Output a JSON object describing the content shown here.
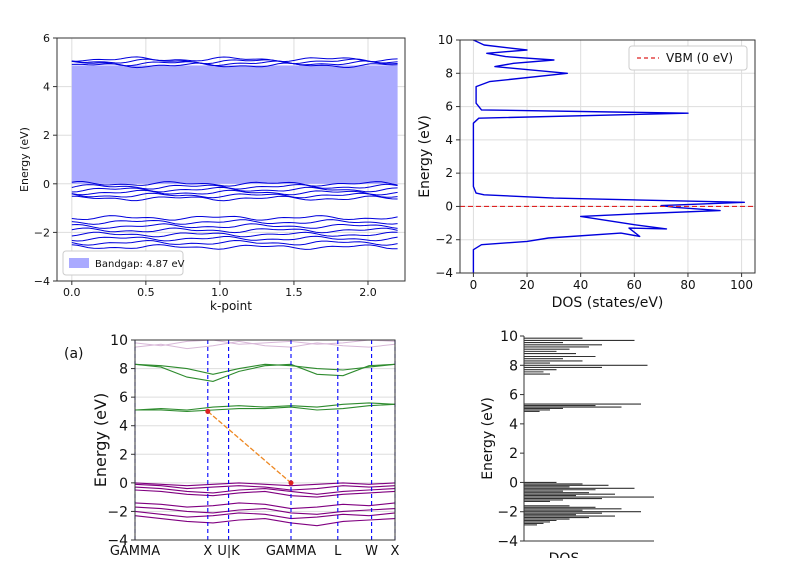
{
  "chart_data": [
    {
      "id": "band-structure-top",
      "type": "line",
      "title": "",
      "xlabel": "k-point",
      "ylabel": "Energy (eV)",
      "xlim": [
        -0.1,
        2.25
      ],
      "ylim": [
        -4,
        6
      ],
      "xticks": [
        "0.0",
        "0.5",
        "1.0",
        "1.5",
        "2.0"
      ],
      "xtick_values": [
        0.0,
        0.5,
        1.0,
        1.5,
        2.0
      ],
      "yticks": [
        "6",
        "4",
        "2",
        "0",
        "−2",
        "−4"
      ],
      "ytick_values": [
        6,
        4,
        2,
        0,
        -2,
        -4
      ],
      "gap_region": {
        "from": 0.0,
        "to": 4.87,
        "xrange": [
          0.0,
          2.2
        ]
      },
      "legend": {
        "label": "Bandgap: 4.87 eV",
        "position": "bottom-left",
        "color": "#aaaaff"
      },
      "line_color": "#0000dd",
      "band_groups": [
        {
          "center": 5.0,
          "width": 0.25,
          "count": 4
        },
        {
          "center": -0.3,
          "width": 0.6,
          "count": 6
        },
        {
          "center": -2.0,
          "width": 1.2,
          "count": 8
        }
      ],
      "grid": true
    },
    {
      "id": "dos-top",
      "type": "line",
      "title": "",
      "xlabel": "DOS (states/eV)",
      "ylabel": "Energy (eV)",
      "xlim": [
        -5,
        105
      ],
      "ylim": [
        -4,
        10
      ],
      "xticks": [
        "0",
        "20",
        "40",
        "60",
        "80",
        "100"
      ],
      "xtick_values": [
        0,
        20,
        40,
        60,
        80,
        100
      ],
      "yticks": [
        "10",
        "8",
        "6",
        "4",
        "2",
        "0",
        "−2",
        "−4"
      ],
      "ytick_values": [
        10,
        8,
        6,
        4,
        2,
        0,
        -2,
        -4
      ],
      "line_color": "#0000dd",
      "reference_line": {
        "y": 0,
        "label": "VBM (0 eV)",
        "color": "#dd2222"
      },
      "legend": {
        "position": "top-right"
      },
      "points": [
        [
          0,
          -4.0
        ],
        [
          0,
          -2.6
        ],
        [
          3,
          -2.3
        ],
        [
          20,
          -2.1
        ],
        [
          28,
          -1.9
        ],
        [
          55,
          -1.6
        ],
        [
          62,
          -1.8
        ],
        [
          58,
          -1.3
        ],
        [
          72,
          -1.35
        ],
        [
          60,
          -1.1
        ],
        [
          40,
          -0.6
        ],
        [
          60,
          -0.45
        ],
        [
          92,
          -0.25
        ],
        [
          75,
          -0.05
        ],
        [
          70,
          0.05
        ],
        [
          101,
          0.25
        ],
        [
          30,
          0.5
        ],
        [
          4,
          0.7
        ],
        [
          1,
          0.8
        ],
        [
          0,
          1.2
        ],
        [
          0,
          5.0
        ],
        [
          2,
          5.3
        ],
        [
          80,
          5.6
        ],
        [
          3,
          5.8
        ],
        [
          1,
          6.2
        ],
        [
          1,
          7.2
        ],
        [
          6,
          7.5
        ],
        [
          35,
          8.0
        ],
        [
          8,
          8.4
        ],
        [
          15,
          8.6
        ],
        [
          30,
          8.8
        ],
        [
          12,
          9.0
        ],
        [
          5,
          9.2
        ],
        [
          20,
          9.4
        ],
        [
          4,
          9.7
        ],
        [
          0,
          10.0
        ]
      ],
      "grid": true
    },
    {
      "id": "band-structure-bottom",
      "type": "line",
      "title": "",
      "panel_label": "(a)",
      "xlabel": "",
      "ylabel": "Energy (eV)",
      "ylim": [
        -4,
        10
      ],
      "yticks": [
        "10",
        "8",
        "6",
        "4",
        "2",
        "0",
        "−2",
        "−4"
      ],
      "ytick_values": [
        10,
        8,
        6,
        4,
        2,
        0,
        -2,
        -4
      ],
      "high_symmetry_points": [
        {
          "label": "GAMMA",
          "pos": 0.0
        },
        {
          "label": "X",
          "pos": 0.28
        },
        {
          "label": "U|K",
          "pos": 0.36
        },
        {
          "label": "GAMMA",
          "pos": 0.6
        },
        {
          "label": "L",
          "pos": 0.78
        },
        {
          "label": "W",
          "pos": 0.91
        },
        {
          "label": "X",
          "pos": 1.0
        }
      ],
      "vline_color": "#0000ff",
      "conduction_color": "#2e8b2e",
      "valence_color": "#800080",
      "faint_color": "#d8b8d8",
      "conduction_bands": [
        [
          5.1,
          5.1,
          5.0,
          5.1,
          5.2,
          5.2,
          5.3,
          5.1,
          5.2,
          5.4,
          5.5
        ],
        [
          5.1,
          5.2,
          5.1,
          5.3,
          5.4,
          5.3,
          5.4,
          5.3,
          5.5,
          5.6,
          5.5
        ],
        [
          8.3,
          8.1,
          7.4,
          7.1,
          7.8,
          8.2,
          8.3,
          7.6,
          7.5,
          8.2,
          8.3
        ],
        [
          8.3,
          8.2,
          8.0,
          7.6,
          8.0,
          8.3,
          8.2,
          8.0,
          7.9,
          8.1,
          8.3
        ]
      ],
      "valence_bands": [
        [
          0.0,
          -0.1,
          -0.2,
          -0.1,
          0.0,
          -0.1,
          -0.2,
          -0.1,
          0.0,
          -0.1,
          0.0
        ],
        [
          -0.1,
          -0.2,
          -0.4,
          -0.3,
          -0.2,
          -0.3,
          -0.5,
          -0.4,
          -0.2,
          -0.3,
          -0.2
        ],
        [
          -0.3,
          -0.4,
          -0.6,
          -0.7,
          -0.5,
          -0.4,
          -0.6,
          -0.8,
          -0.6,
          -0.5,
          -0.4
        ],
        [
          -0.5,
          -0.6,
          -0.8,
          -0.9,
          -0.7,
          -0.6,
          -0.9,
          -1.0,
          -0.8,
          -0.7,
          -0.6
        ],
        [
          -1.4,
          -1.5,
          -1.7,
          -1.6,
          -1.4,
          -1.5,
          -1.8,
          -1.7,
          -1.5,
          -1.6,
          -1.4
        ],
        [
          -1.7,
          -1.8,
          -2.0,
          -2.1,
          -1.9,
          -1.8,
          -2.1,
          -2.2,
          -2.0,
          -1.9,
          -1.8
        ],
        [
          -2.0,
          -2.2,
          -2.4,
          -2.3,
          -2.1,
          -2.2,
          -2.5,
          -2.4,
          -2.2,
          -2.3,
          -2.1
        ],
        [
          -2.3,
          -2.5,
          -2.7,
          -2.8,
          -2.6,
          -2.5,
          -2.8,
          -3.0,
          -2.7,
          -2.6,
          -2.5
        ]
      ],
      "faint_bands": [
        [
          9.8,
          9.6,
          9.9,
          10.0,
          9.7,
          9.8,
          9.9,
          9.7,
          9.8,
          10.0,
          9.9
        ],
        [
          9.5,
          9.7,
          9.4,
          9.6,
          9.9,
          9.6,
          9.5,
          9.8,
          9.6,
          9.5,
          9.7
        ]
      ],
      "gap_transition": {
        "from": {
          "pos": 0.28,
          "energy": 5.0
        },
        "to": {
          "pos": 0.6,
          "energy": 0.0
        },
        "color": "#ee8822",
        "marker_color": "#dd2222"
      },
      "grid": true
    },
    {
      "id": "dos-bottom",
      "type": "bar",
      "title": "",
      "xlabel": "DOS",
      "ylabel": "Energy (eV)",
      "ylim": [
        -4,
        10
      ],
      "yticks": [
        "10",
        "8",
        "6",
        "4",
        "2",
        "0",
        "−2",
        "−4"
      ],
      "ytick_values": [
        10,
        8,
        6,
        4,
        2,
        0,
        -2,
        -4
      ],
      "bar_color": "#333333",
      "max_dos": 1.0,
      "bars": [
        [
          9.85,
          0.45
        ],
        [
          9.7,
          0.85
        ],
        [
          9.55,
          0.3
        ],
        [
          9.4,
          0.6
        ],
        [
          9.25,
          0.5
        ],
        [
          9.1,
          0.35
        ],
        [
          8.95,
          0.25
        ],
        [
          8.8,
          0.4
        ],
        [
          8.6,
          0.55
        ],
        [
          8.45,
          0.3
        ],
        [
          8.3,
          0.45
        ],
        [
          8.15,
          0.2
        ],
        [
          8.0,
          0.95
        ],
        [
          7.85,
          0.6
        ],
        [
          7.7,
          0.25
        ],
        [
          7.55,
          0.15
        ],
        [
          7.4,
          0.2
        ],
        [
          5.35,
          0.9
        ],
        [
          5.25,
          0.55
        ],
        [
          5.15,
          0.75
        ],
        [
          5.05,
          0.3
        ],
        [
          4.95,
          0.2
        ],
        [
          4.85,
          0.12
        ],
        [
          0.0,
          0.25
        ],
        [
          -0.1,
          0.45
        ],
        [
          -0.2,
          0.65
        ],
        [
          -0.3,
          0.35
        ],
        [
          -0.4,
          0.85
        ],
        [
          -0.5,
          0.55
        ],
        [
          -0.6,
          0.3
        ],
        [
          -0.7,
          0.5
        ],
        [
          -0.8,
          0.7
        ],
        [
          -0.9,
          0.4
        ],
        [
          -1.0,
          1.0
        ],
        [
          -1.1,
          0.6
        ],
        [
          -1.2,
          0.3
        ],
        [
          -1.3,
          0.2
        ],
        [
          -1.6,
          0.35
        ],
        [
          -1.7,
          0.55
        ],
        [
          -1.8,
          0.75
        ],
        [
          -1.9,
          0.45
        ],
        [
          -2.0,
          0.9
        ],
        [
          -2.1,
          0.6
        ],
        [
          -2.2,
          0.4
        ],
        [
          -2.3,
          0.7
        ],
        [
          -2.4,
          0.5
        ],
        [
          -2.5,
          0.35
        ],
        [
          -2.6,
          0.25
        ],
        [
          -2.7,
          0.2
        ],
        [
          -2.8,
          0.15
        ],
        [
          -2.9,
          0.1
        ]
      ],
      "grid": false
    }
  ]
}
